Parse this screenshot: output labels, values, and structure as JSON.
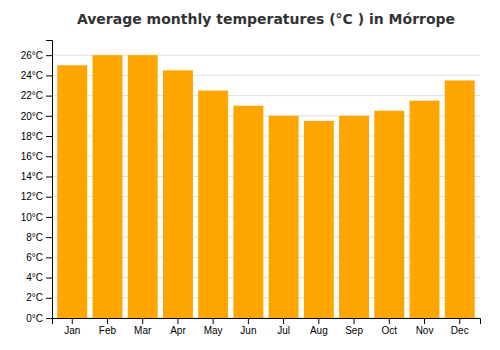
{
  "chart_data": {
    "type": "bar",
    "title": "Average monthly temperatures (°C ) in Mórrope",
    "categories": [
      "Jan",
      "Feb",
      "Mar",
      "Apr",
      "May",
      "Jun",
      "Jul",
      "Aug",
      "Sep",
      "Oct",
      "Nov",
      "Dec"
    ],
    "values": [
      25.0,
      26.0,
      26.0,
      24.5,
      22.5,
      21.0,
      20.0,
      19.5,
      20.0,
      20.5,
      21.5,
      23.5
    ],
    "color": "#FFA500",
    "ylim": [
      0,
      27.5
    ],
    "yticks": [
      {
        "value": 0,
        "label": "0°C"
      },
      {
        "value": 2,
        "label": "2°C"
      },
      {
        "value": 4,
        "label": "4°C"
      },
      {
        "value": 6,
        "label": "6°C"
      },
      {
        "value": 8,
        "label": "8°C"
      },
      {
        "value": 10,
        "label": "10°C"
      },
      {
        "value": 12,
        "label": "12°C"
      },
      {
        "value": 14,
        "label": "14°C"
      },
      {
        "value": 16,
        "label": "16°C"
      },
      {
        "value": 18,
        "label": "18°C"
      },
      {
        "value": 20,
        "label": "20°C"
      },
      {
        "value": 22,
        "label": "22°C"
      },
      {
        "value": 24,
        "label": "24°C"
      },
      {
        "value": 26,
        "label": "26°C"
      }
    ],
    "grid": true
  }
}
